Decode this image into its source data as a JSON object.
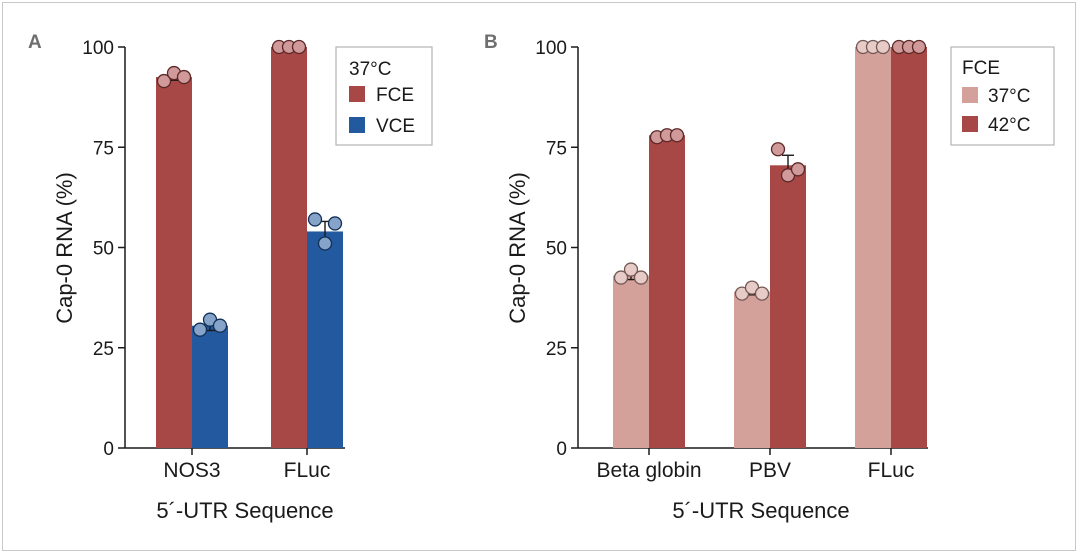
{
  "chart_data": [
    {
      "type": "bar",
      "panel": "A",
      "categories": [
        "NOS3",
        "FLuc"
      ],
      "series": [
        {
          "name": "FCE",
          "color": "#a84846",
          "values": [
            92.5,
            100
          ],
          "error": [
            0.8,
            0
          ],
          "points": [
            [
              91.5,
              93.5,
              92.5
            ],
            [
              100,
              100,
              100
            ]
          ]
        },
        {
          "name": "VCE",
          "color": "#23599e",
          "values": [
            30.5,
            54
          ],
          "error": [
            1.2,
            2.5
          ],
          "points": [
            [
              29.5,
              32,
              30.5
            ],
            [
              57,
              51,
              56
            ]
          ]
        }
      ],
      "legend_title": "37°C",
      "ylabel": "Cap-0 RNA (%)",
      "xlabel": "5´-UTR Sequence",
      "ylim": [
        0,
        100
      ],
      "yticks": [
        "0",
        "25",
        "50",
        "75",
        "100"
      ],
      "legend_position": "top-right"
    },
    {
      "type": "bar",
      "panel": "B",
      "categories": [
        "Beta globin",
        "PBV",
        "FLuc"
      ],
      "series": [
        {
          "name": "37°C",
          "color": "#d3a09a",
          "values": [
            43,
            39,
            100
          ],
          "error": [
            1.0,
            0.8,
            0
          ],
          "points": [
            [
              42.5,
              44.5,
              42.5
            ],
            [
              38.5,
              40,
              38.5
            ],
            [
              100,
              100,
              100
            ]
          ]
        },
        {
          "name": "42°C",
          "color": "#a84846",
          "values": [
            78,
            70.5,
            100
          ],
          "error": [
            0.4,
            2.5,
            0
          ],
          "points": [
            [
              77.5,
              78,
              78
            ],
            [
              74.5,
              68,
              69.5
            ],
            [
              100,
              100,
              100
            ]
          ]
        }
      ],
      "legend_title": "FCE",
      "ylabel": "Cap-0 RNA (%)",
      "xlabel": "5´-UTR Sequence",
      "ylim": [
        0,
        100
      ],
      "yticks": [
        "0",
        "25",
        "50",
        "75",
        "100"
      ],
      "legend_position": "top-right"
    }
  ]
}
